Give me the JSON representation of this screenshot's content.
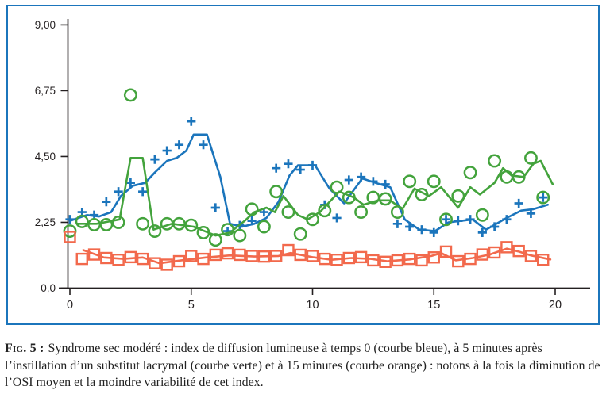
{
  "figure": {
    "border_color": "#1b75bc",
    "background": "#ffffff"
  },
  "caption": {
    "label": "Fig. 5 :",
    "text": "Syndrome sec modéré : index de diffusion lumineuse à temps 0 (courbe bleue), à 5 minutes après l’instillation d’un substitut lacrymal (courbe verte) et à 15 minutes (courbe orange) : notons à la fois la diminution de l’OSI moyen et la moindre variabilité de cet index."
  },
  "chart_data": {
    "type": "scatter",
    "title": "",
    "xlabel": "",
    "ylabel": "",
    "grid": false,
    "legend_position": "none",
    "axis_color": "#231f20",
    "xlim": [
      -0.4,
      21.5
    ],
    "ylim": [
      0,
      9.6
    ],
    "x_ticks": [
      0,
      5,
      10,
      15,
      20
    ],
    "x_tick_labels": [
      "0",
      "5",
      "10",
      "15",
      "20"
    ],
    "y_ticks": [
      0,
      2.25,
      4.5,
      6.75,
      9
    ],
    "y_tick_labels": [
      "0,0",
      "2,25",
      "4,50",
      "6,75",
      "9,00"
    ],
    "series": [
      {
        "id": "blue",
        "name": "Index de diffusion lumineuse (OSI) à temps 0 — courbe bleue",
        "marker": "plus",
        "color": "#1b75bc",
        "points": [
          [
            0,
            2.35
          ],
          [
            0.5,
            2.6
          ],
          [
            1,
            2.5
          ],
          [
            1.5,
            2.95
          ],
          [
            2,
            3.3
          ],
          [
            2.5,
            3.6
          ],
          [
            3,
            3.3
          ],
          [
            3.5,
            4.4
          ],
          [
            4,
            4.7
          ],
          [
            4.5,
            4.9
          ],
          [
            5,
            5.7
          ],
          [
            5.5,
            4.9
          ],
          [
            6,
            2.75
          ],
          [
            6.5,
            1.95
          ],
          [
            7,
            2.15
          ],
          [
            7.5,
            2.3
          ],
          [
            8,
            2.6
          ],
          [
            8.5,
            4.1
          ],
          [
            9,
            4.25
          ],
          [
            9.5,
            4.05
          ],
          [
            10,
            4.2
          ],
          [
            10.5,
            2.85
          ],
          [
            11,
            2.4
          ],
          [
            11.5,
            3.7
          ],
          [
            12,
            3.8
          ],
          [
            12.5,
            3.65
          ],
          [
            13,
            3.55
          ],
          [
            13.5,
            2.2
          ],
          [
            14,
            2.1
          ],
          [
            14.5,
            2.0
          ],
          [
            15,
            1.9
          ],
          [
            15.5,
            2.35
          ],
          [
            16,
            2.3
          ],
          [
            16.5,
            2.35
          ],
          [
            17,
            1.9
          ],
          [
            17.5,
            2.1
          ],
          [
            18,
            2.35
          ],
          [
            18.5,
            2.9
          ],
          [
            19,
            2.55
          ],
          [
            19.5,
            3.1
          ]
        ],
        "trend_line": [
          [
            0,
            2.3
          ],
          [
            0.7,
            2.5
          ],
          [
            1.2,
            2.45
          ],
          [
            1.7,
            2.6
          ],
          [
            2.1,
            3.15
          ],
          [
            2.6,
            3.5
          ],
          [
            3.1,
            3.6
          ],
          [
            3.5,
            3.95
          ],
          [
            4,
            4.35
          ],
          [
            4.4,
            4.45
          ],
          [
            4.8,
            4.7
          ],
          [
            5.1,
            5.25
          ],
          [
            5.65,
            5.25
          ],
          [
            6.2,
            3.8
          ],
          [
            6.6,
            2.2
          ],
          [
            7.1,
            2.1
          ],
          [
            7.6,
            2.2
          ],
          [
            8.1,
            2.4
          ],
          [
            8.6,
            2.95
          ],
          [
            9.05,
            3.85
          ],
          [
            9.4,
            4.2
          ],
          [
            10.1,
            4.2
          ],
          [
            10.7,
            3.4
          ],
          [
            11.3,
            2.9
          ],
          [
            12.05,
            3.75
          ],
          [
            12.6,
            3.6
          ],
          [
            13.2,
            3.45
          ],
          [
            13.8,
            2.35
          ],
          [
            14.4,
            2.0
          ],
          [
            15.05,
            1.95
          ],
          [
            15.6,
            2.25
          ],
          [
            16.6,
            2.35
          ],
          [
            17.15,
            2.0
          ],
          [
            18,
            2.4
          ],
          [
            18.6,
            2.65
          ],
          [
            19.1,
            2.7
          ],
          [
            19.7,
            2.85
          ]
        ]
      },
      {
        "id": "green",
        "name": "OSI à 5 minutes après l’instillation d’un substitut lacrymal — courbe verte",
        "marker": "circle",
        "color": "#43a33c",
        "points": [
          [
            0,
            1.95
          ],
          [
            0.5,
            2.28
          ],
          [
            1,
            2.17
          ],
          [
            1.5,
            2.17
          ],
          [
            2,
            2.25
          ],
          [
            2.5,
            6.6
          ],
          [
            3,
            2.2
          ],
          [
            3.5,
            1.95
          ],
          [
            4,
            2.2
          ],
          [
            4.5,
            2.2
          ],
          [
            5,
            2.15
          ],
          [
            5.5,
            1.9
          ],
          [
            6,
            1.65
          ],
          [
            6.5,
            2.0
          ],
          [
            7,
            1.8
          ],
          [
            7.5,
            2.7
          ],
          [
            8,
            2.1
          ],
          [
            8.5,
            3.3
          ],
          [
            9,
            2.6
          ],
          [
            9.5,
            1.85
          ],
          [
            10,
            2.35
          ],
          [
            10.5,
            2.65
          ],
          [
            11,
            3.45
          ],
          [
            11.5,
            3.1
          ],
          [
            12,
            2.6
          ],
          [
            12.5,
            3.1
          ],
          [
            13,
            3.05
          ],
          [
            13.5,
            2.6
          ],
          [
            14,
            3.65
          ],
          [
            14.5,
            3.2
          ],
          [
            15,
            3.65
          ],
          [
            15.5,
            2.35
          ],
          [
            16,
            3.15
          ],
          [
            16.5,
            3.95
          ],
          [
            17,
            2.5
          ],
          [
            17.5,
            4.35
          ],
          [
            18,
            3.8
          ],
          [
            18.5,
            3.8
          ],
          [
            19,
            4.45
          ],
          [
            19.5,
            3.1
          ]
        ],
        "trend_line": [
          [
            0.3,
            2.2
          ],
          [
            1.1,
            2.2
          ],
          [
            2.05,
            2.35
          ],
          [
            2.5,
            4.45
          ],
          [
            3.0,
            4.45
          ],
          [
            3.45,
            2.0
          ],
          [
            4.2,
            2.2
          ],
          [
            5.1,
            2.1
          ],
          [
            6,
            1.8
          ],
          [
            6.6,
            1.9
          ],
          [
            7.2,
            2.3
          ],
          [
            7.6,
            2.6
          ],
          [
            8.1,
            2.75
          ],
          [
            8.45,
            2.6
          ],
          [
            8.8,
            3.15
          ],
          [
            9.4,
            2.5
          ],
          [
            9.8,
            2.35
          ],
          [
            10.3,
            2.6
          ],
          [
            11.1,
            3.3
          ],
          [
            11.7,
            3.1
          ],
          [
            12.1,
            2.85
          ],
          [
            12.7,
            3.0
          ],
          [
            13.2,
            3.0
          ],
          [
            13.7,
            2.7
          ],
          [
            14.2,
            3.4
          ],
          [
            14.8,
            3.15
          ],
          [
            15.3,
            3.45
          ],
          [
            16,
            2.75
          ],
          [
            16.5,
            3.45
          ],
          [
            16.9,
            3.2
          ],
          [
            17.5,
            3.6
          ],
          [
            17.85,
            4.1
          ],
          [
            18.2,
            3.85
          ],
          [
            18.7,
            3.8
          ],
          [
            19.1,
            4.25
          ],
          [
            19.4,
            4.35
          ],
          [
            19.9,
            3.55
          ]
        ]
      },
      {
        "id": "orange",
        "name": "OSI à 15 minutes — courbe orange",
        "marker": "square",
        "color": "#f2694c",
        "points": [
          [
            0,
            1.75
          ],
          [
            0.5,
            1.0
          ],
          [
            1,
            1.15
          ],
          [
            1.5,
            1.03
          ],
          [
            2,
            0.97
          ],
          [
            2.5,
            1.06
          ],
          [
            3,
            1.0
          ],
          [
            3.5,
            0.85
          ],
          [
            4,
            0.8
          ],
          [
            4.5,
            0.92
          ],
          [
            5,
            1.1
          ],
          [
            5.5,
            1.0
          ],
          [
            6,
            1.14
          ],
          [
            6.5,
            1.19
          ],
          [
            7,
            1.14
          ],
          [
            7.5,
            1.1
          ],
          [
            8,
            1.08
          ],
          [
            8.5,
            1.1
          ],
          [
            9,
            1.3
          ],
          [
            9.5,
            1.14
          ],
          [
            10,
            1.1
          ],
          [
            10.5,
            1.0
          ],
          [
            11,
            0.97
          ],
          [
            11.5,
            1.03
          ],
          [
            12,
            1.06
          ],
          [
            12.5,
            0.95
          ],
          [
            13,
            0.9
          ],
          [
            13.5,
            0.95
          ],
          [
            14,
            1.0
          ],
          [
            14.5,
            0.95
          ],
          [
            15,
            1.05
          ],
          [
            15.5,
            1.25
          ],
          [
            16,
            0.92
          ],
          [
            16.5,
            1.0
          ],
          [
            17,
            1.15
          ],
          [
            17.5,
            1.22
          ],
          [
            18,
            1.4
          ],
          [
            18.5,
            1.27
          ],
          [
            19,
            1.1
          ],
          [
            19.5,
            0.97
          ]
        ],
        "trend_line": [
          [
            0.55,
            1.3
          ],
          [
            1.4,
            1.05
          ],
          [
            2.2,
            1.0
          ],
          [
            3,
            1.05
          ],
          [
            3.7,
            0.85
          ],
          [
            4.6,
            0.95
          ],
          [
            5.6,
            1.05
          ],
          [
            6.6,
            1.12
          ],
          [
            7.6,
            1.08
          ],
          [
            8.6,
            1.1
          ],
          [
            9.1,
            1.2
          ],
          [
            10,
            1.06
          ],
          [
            10.8,
            0.97
          ],
          [
            11.6,
            1.03
          ],
          [
            12.4,
            1.0
          ],
          [
            13.1,
            0.92
          ],
          [
            14,
            0.98
          ],
          [
            14.9,
            1.1
          ],
          [
            15.3,
            1.2
          ],
          [
            15.9,
            0.95
          ],
          [
            16.6,
            1.03
          ],
          [
            17.3,
            1.15
          ],
          [
            18,
            1.35
          ],
          [
            18.5,
            1.25
          ],
          [
            19,
            1.12
          ],
          [
            19.8,
            0.98
          ]
        ]
      }
    ]
  }
}
